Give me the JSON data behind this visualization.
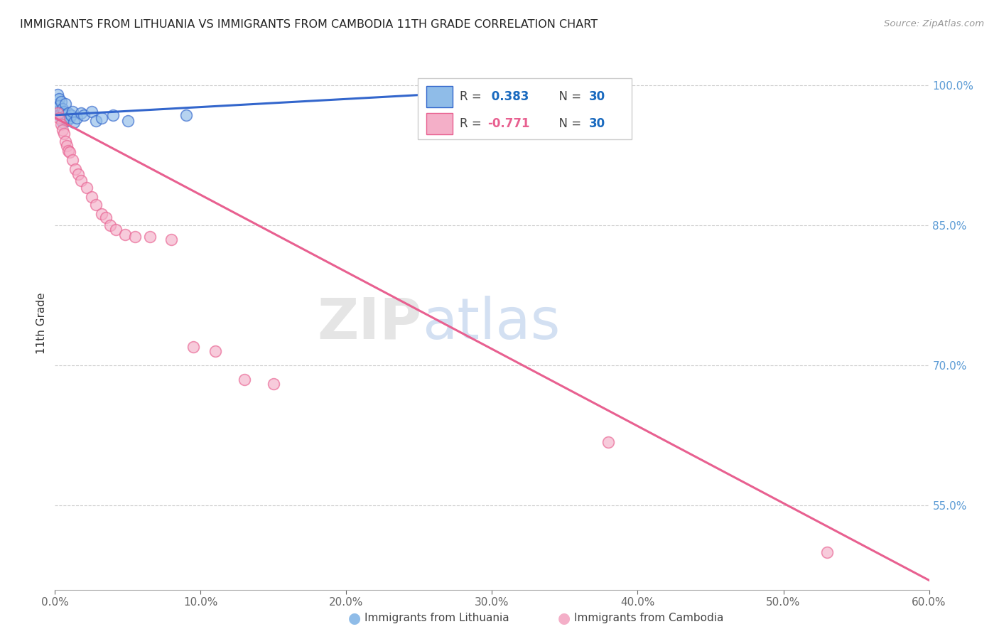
{
  "title": "IMMIGRANTS FROM LITHUANIA VS IMMIGRANTS FROM CAMBODIA 11TH GRADE CORRELATION CHART",
  "source": "Source: ZipAtlas.com",
  "ylabel": "11th Grade",
  "x_min": 0.0,
  "x_max": 0.6,
  "y_min": 0.46,
  "y_max": 1.03,
  "lithuania_R": 0.383,
  "lithuania_N": 30,
  "cambodia_R": -0.771,
  "cambodia_N": 30,
  "lithuania_color": "#8fbce8",
  "cambodia_color": "#f4afc8",
  "lithuania_line_color": "#3366cc",
  "cambodia_line_color": "#e86090",
  "ytick_vals": [
    1.0,
    0.85,
    0.7,
    0.55
  ],
  "ytick_labels": [
    "100.0%",
    "85.0%",
    "70.0%",
    "55.0%"
  ],
  "xtick_vals": [
    0.0,
    0.1,
    0.2,
    0.3,
    0.4,
    0.5,
    0.6
  ],
  "xtick_labels": [
    "0.0%",
    "10.0%",
    "20.0%",
    "30.0%",
    "40.0%",
    "50.0%",
    "60.0%"
  ],
  "lithuania_x": [
    0.001,
    0.002,
    0.002,
    0.003,
    0.003,
    0.003,
    0.004,
    0.004,
    0.005,
    0.005,
    0.005,
    0.006,
    0.007,
    0.007,
    0.008,
    0.009,
    0.01,
    0.011,
    0.012,
    0.013,
    0.015,
    0.018,
    0.02,
    0.025,
    0.028,
    0.032,
    0.04,
    0.05,
    0.09,
    0.28
  ],
  "lithuania_y": [
    0.975,
    0.99,
    0.972,
    0.985,
    0.968,
    0.978,
    0.97,
    0.982,
    0.965,
    0.975,
    0.96,
    0.972,
    0.968,
    0.98,
    0.962,
    0.97,
    0.965,
    0.968,
    0.972,
    0.96,
    0.965,
    0.97,
    0.968,
    0.972,
    0.962,
    0.965,
    0.968,
    0.962,
    0.968,
    0.992
  ],
  "cambodia_x": [
    0.002,
    0.003,
    0.004,
    0.005,
    0.006,
    0.007,
    0.008,
    0.009,
    0.01,
    0.012,
    0.014,
    0.016,
    0.018,
    0.022,
    0.025,
    0.028,
    0.032,
    0.035,
    0.038,
    0.042,
    0.048,
    0.055,
    0.065,
    0.08,
    0.095,
    0.11,
    0.13,
    0.15,
    0.38,
    0.53
  ],
  "cambodia_y": [
    0.97,
    0.965,
    0.958,
    0.952,
    0.948,
    0.94,
    0.935,
    0.93,
    0.928,
    0.92,
    0.91,
    0.905,
    0.898,
    0.89,
    0.88,
    0.872,
    0.862,
    0.858,
    0.85,
    0.845,
    0.84,
    0.838,
    0.838,
    0.835,
    0.72,
    0.715,
    0.685,
    0.68,
    0.618,
    0.5
  ],
  "lith_trend_x": [
    0.001,
    0.28
  ],
  "lith_trend_y": [
    0.968,
    0.992
  ],
  "camb_trend_x": [
    0.0,
    0.6
  ],
  "camb_trend_y": [
    0.965,
    0.47
  ]
}
